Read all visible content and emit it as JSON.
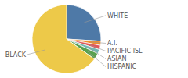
{
  "chart_data": {
    "type": "pie",
    "categories": [
      "WHITE",
      "A.I.",
      "PACIFIC ISL",
      "ASIAN",
      "HISPANIC",
      "BLACK"
    ],
    "values": [
      26,
      2,
      2,
      2,
      3,
      65
    ]
  }
}
